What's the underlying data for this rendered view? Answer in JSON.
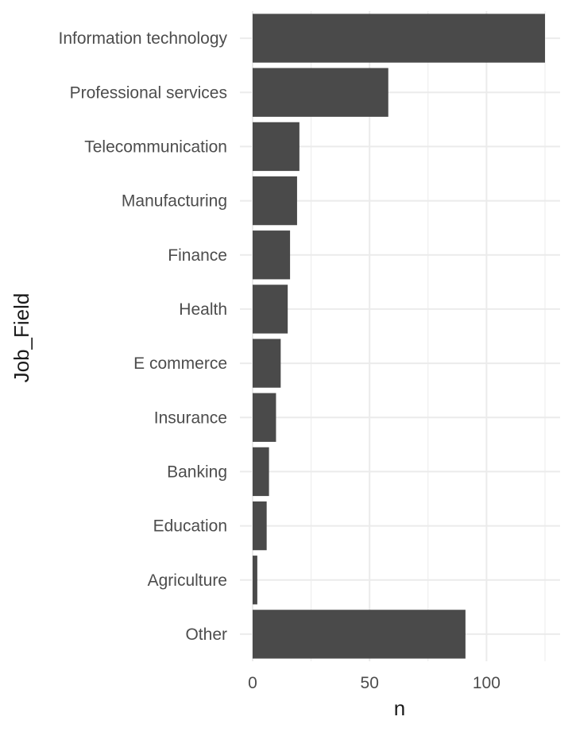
{
  "chart_data": {
    "type": "bar",
    "orientation": "horizontal",
    "categories": [
      "Information technology",
      "Professional services",
      "Telecommunication",
      "Manufacturing",
      "Finance",
      "Health",
      "E commerce",
      "Insurance",
      "Banking",
      "Education",
      "Agriculture",
      "Other"
    ],
    "values": [
      125,
      58,
      20,
      19,
      16,
      15,
      12,
      10,
      7,
      6,
      2,
      91
    ],
    "xlabel": "n",
    "ylabel": "Job_Field",
    "xlim": [
      0,
      126
    ],
    "x_ticks": [
      0,
      50,
      100
    ],
    "x_minor_ticks": [
      25,
      75,
      125
    ],
    "grid": true,
    "bar_color": "#4a4a4a",
    "grid_color": "#ebebeb"
  }
}
